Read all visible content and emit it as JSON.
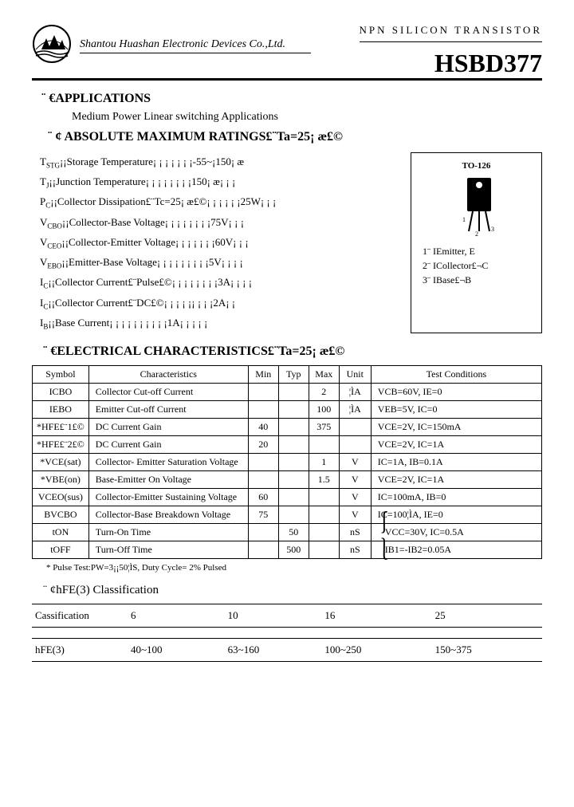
{
  "header": {
    "company": "Shantou Huashan Electronic Devices Co.,Ltd.",
    "product_type": "NPN SILICON TRANSISTOR",
    "part_number": "HSBD377"
  },
  "applications": {
    "title": "¨ €APPLICATIONS",
    "text": "Medium Power Linear switching Applications"
  },
  "ratings": {
    "title": "¨ ¢ ABSOLUTE MAXIMUM RATINGS£¨Ta=25¡ æ£©",
    "rows": [
      {
        "sym": "TSTG",
        "label": "¡¡Storage Temperature¡ ¡ ¡ ¡ ¡ ¡ ¡-55~¡150¡ æ"
      },
      {
        "sym": "TJ",
        "label": "¡¡Junction Temperature¡ ¡ ¡ ¡ ¡ ¡ ¡ ¡150¡ æ¡ ¡ ¡"
      },
      {
        "sym": "PC",
        "label": "¡¡Collector Dissipation£¨Tc=25¡ æ£©¡ ¡ ¡ ¡ ¡ ¡25W¡ ¡ ¡"
      },
      {
        "sym": "VCBO",
        "label": "¡¡Collector-Base Voltage¡ ¡ ¡ ¡ ¡ ¡ ¡ ¡75V¡ ¡ ¡"
      },
      {
        "sym": "VCEO",
        "label": "¡¡Collector-Emitter Voltage¡ ¡ ¡ ¡ ¡ ¡ ¡60V¡ ¡ ¡"
      },
      {
        "sym": "VEBO",
        "label": "¡¡Emitter-Base Voltage¡ ¡ ¡ ¡ ¡ ¡ ¡ ¡ ¡5V¡ ¡ ¡ ¡"
      },
      {
        "sym": "IC",
        "label": "¡¡Collector Current£¨Pulse£©¡ ¡ ¡ ¡ ¡ ¡ ¡ ¡3A¡ ¡ ¡ ¡"
      },
      {
        "sym": "IC",
        "label": "¡¡Collector Current£¨DC£©¡ ¡ ¡ ¡ ¡¡ ¡ ¡ ¡2A¡ ¡"
      },
      {
        "sym": "IB",
        "label": "¡¡Base Current¡ ¡ ¡ ¡ ¡ ¡ ¡ ¡ ¡ ¡1A¡ ¡ ¡ ¡ ¡"
      }
    ]
  },
  "package": {
    "label": "TO-126",
    "pins": [
      {
        "n": "1",
        "text": "1¨ IEmitter, E"
      },
      {
        "n": "2",
        "text": "2¨ ICollector£¬C"
      },
      {
        "n": "3",
        "text": "3¨ IBase£¬B"
      }
    ],
    "body_color": "#000000",
    "hole_color": "#ffffff"
  },
  "electrical": {
    "title": "¨ €ELECTRICAL CHARACTERISTICS£¨Ta=25¡ æ£©",
    "headers": [
      "Symbol",
      "Characteristics",
      "Min",
      "Typ",
      "Max",
      "Unit",
      "Test Conditions"
    ],
    "rows": [
      {
        "sym": "ICBO",
        "char": "Collector Cut-off Current",
        "min": "",
        "typ": "",
        "max": "2",
        "unit": "¦ÌA",
        "cond": "VCB=60V, IE=0"
      },
      {
        "sym": "IEBO",
        "char": "Emitter Cut-off Current",
        "min": "",
        "typ": "",
        "max": "100",
        "unit": "¦ÌA",
        "cond": "VEB=5V, IC=0"
      },
      {
        "sym": "*HFE£¨1£©",
        "char": "DC Current Gain",
        "min": "40",
        "typ": "",
        "max": "375",
        "unit": "",
        "cond": "VCE=2V, IC=150mA"
      },
      {
        "sym": "*HFE£¨2£©",
        "char": "DC Current Gain",
        "min": "20",
        "typ": "",
        "max": "",
        "unit": "",
        "cond": "VCE=2V, IC=1A"
      },
      {
        "sym": "*VCE(sat)",
        "char": "Collector- Emitter Saturation Voltage",
        "min": "",
        "typ": "",
        "max": "1",
        "unit": "V",
        "cond": "IC=1A, IB=0.1A"
      },
      {
        "sym": "*VBE(on)",
        "char": "Base-Emitter On Voltage",
        "min": "",
        "typ": "",
        "max": "1.5",
        "unit": "V",
        "cond": "VCE=2V, IC=1A"
      },
      {
        "sym": "VCEO(sus)",
        "char": "Collector-Emitter Sustaining Voltage",
        "min": "60",
        "typ": "",
        "max": "",
        "unit": "V",
        "cond": "IC=100mA, IB=0"
      },
      {
        "sym": "BVCBO",
        "char": "Collector-Base Breakdown Voltage",
        "min": "75",
        "typ": "",
        "max": "",
        "unit": "V",
        "cond": "IC=100¦ÌA, IE=0"
      },
      {
        "sym": "tON",
        "char": "Turn-On Time",
        "min": "",
        "typ": "50",
        "max": "",
        "unit": "nS",
        "cond": "VCC=30V, IC=0.5A"
      },
      {
        "sym": "tOFF",
        "char": "Turn-Off Time",
        "min": "",
        "typ": "500",
        "max": "",
        "unit": "nS",
        "cond": "IB1=-IB2=0.05A"
      }
    ],
    "note": "* Pulse Test:PW=3¡¡50¦ÌS, Duty Cycle= 2% Pulsed"
  },
  "classification": {
    "title": "¨ ¢hFE(3) Classification",
    "header": [
      "Cassification",
      "6",
      "10",
      "16",
      "25"
    ],
    "row": [
      "hFE(3)",
      "40~100",
      "63~160",
      "100~250",
      "150~375"
    ]
  }
}
